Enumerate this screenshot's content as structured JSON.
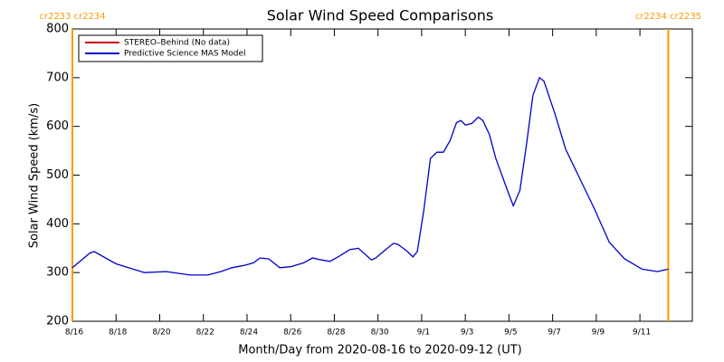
{
  "chart_data": {
    "type": "line",
    "title": "Solar Wind Speed Comparisons",
    "xlabel": "Month/Day from 2020-08-16 to 2020-09-12 (UT)",
    "ylabel": "Solar Wind Speed (km/s)",
    "x": [
      0,
      0.8,
      1,
      2,
      3.3,
      4.3,
      5.4,
      6.2,
      6.8,
      7.3,
      7.9,
      8.3,
      8.6,
      9,
      9.5,
      10,
      10.6,
      11,
      11.4,
      11.8,
      12.2,
      12.7,
      13.1,
      13.7,
      13.9,
      14.3,
      14.7,
      14.9,
      15.3,
      15.6,
      15.8,
      16.1,
      16.4,
      16.7,
      17,
      17.3,
      17.6,
      17.8,
      18,
      18.3,
      18.6,
      18.8,
      19.1,
      19.4,
      20,
      20.2,
      20.5,
      20.8,
      21.1,
      21.4,
      21.6,
      22.1,
      22.6,
      23.2,
      23.9,
      24.6,
      25.3,
      26.1,
      26.8,
      27,
      27.3
    ],
    "series": [
      {
        "name": "Predictive Science MAS Model",
        "color": "#0000cc",
        "values": [
          310,
          340,
          343,
          318,
          300,
          302,
          295,
          295,
          302,
          310,
          315,
          320,
          330,
          328,
          310,
          312,
          320,
          330,
          326,
          323,
          333,
          347,
          350,
          326,
          330,
          345,
          360,
          358,
          345,
          332,
          343,
          428,
          534,
          547,
          547,
          571,
          608,
          612,
          603,
          606,
          619,
          612,
          584,
          534,
          460,
          437,
          469,
          562,
          664,
          700,
          693,
          627,
          553,
          497,
          432,
          362,
          328,
          307,
          302,
          304,
          307
        ]
      }
    ],
    "legend": [
      {
        "name": "STEREO–Behind (No data)",
        "color": "#cc0000"
      },
      {
        "name": "Predictive Science MAS Model",
        "color": "#0000cc"
      }
    ],
    "vlines": [
      {
        "x": 0,
        "label": "cr2233 cr2234",
        "color": "#ff9900"
      },
      {
        "x": 27.3,
        "label": "cr2234 cr2235",
        "color": "#ff9900"
      }
    ],
    "xlim": [
      0,
      28.4
    ],
    "ylim": [
      200,
      800
    ],
    "yticks": [
      200,
      300,
      400,
      500,
      600,
      700,
      800
    ],
    "xticks": [
      {
        "value": 0,
        "label": "8/16"
      },
      {
        "value": 2,
        "label": "8/18"
      },
      {
        "value": 4,
        "label": "8/20"
      },
      {
        "value": 6,
        "label": "8/22"
      },
      {
        "value": 8,
        "label": "8/24"
      },
      {
        "value": 10,
        "label": "8/26"
      },
      {
        "value": 12,
        "label": "8/28"
      },
      {
        "value": 14,
        "label": "8/30"
      },
      {
        "value": 16,
        "label": "9/1"
      },
      {
        "value": 18,
        "label": "9/3"
      },
      {
        "value": 20,
        "label": "9/5"
      },
      {
        "value": 22,
        "label": "9/7"
      },
      {
        "value": 24,
        "label": "9/9"
      },
      {
        "value": 26,
        "label": "9/11"
      }
    ]
  }
}
